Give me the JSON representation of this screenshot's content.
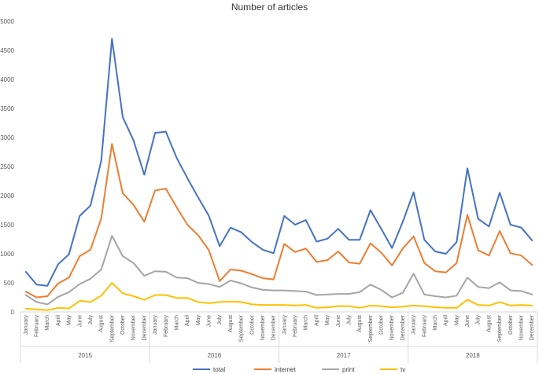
{
  "chart_data": {
    "type": "line",
    "title": "Number of articles",
    "xlabel": "",
    "ylabel": "",
    "ylim": [
      0,
      5000
    ],
    "yticks": [
      0,
      500,
      1000,
      1500,
      2000,
      2500,
      3000,
      3500,
      4000,
      4500,
      5000
    ],
    "grid": false,
    "legend_position": "bottom",
    "years": [
      {
        "label": "2015",
        "months": 12
      },
      {
        "label": "2016",
        "months": 12
      },
      {
        "label": "2017",
        "months": 12
      },
      {
        "label": "2018",
        "months": 12
      }
    ],
    "categories": [
      "January",
      "February",
      "March",
      "April",
      "May",
      "June",
      "July",
      "August",
      "September",
      "October",
      "November",
      "December",
      "January",
      "February",
      "March",
      "April",
      "May",
      "June",
      "July",
      "August",
      "September",
      "October",
      "November",
      "December",
      "January",
      "February",
      "March",
      "April",
      "May",
      "June",
      "July",
      "August",
      "September",
      "October",
      "November",
      "December",
      "January",
      "February",
      "March",
      "April",
      "May",
      "June",
      "July",
      "August",
      "September",
      "October",
      "November",
      "December"
    ],
    "series": [
      {
        "name": "total",
        "color": "#4472C4",
        "values": [
          690,
          470,
          450,
          820,
          990,
          1650,
          1830,
          2600,
          4700,
          3350,
          2950,
          2360,
          3080,
          3100,
          2650,
          2300,
          1970,
          1650,
          1130,
          1450,
          1370,
          1200,
          1070,
          1010,
          1650,
          1500,
          1580,
          1210,
          1260,
          1430,
          1240,
          1240,
          1750,
          1430,
          1100,
          1550,
          2060,
          1240,
          1040,
          1000,
          1200,
          2470,
          1600,
          1470,
          2050,
          1500,
          1450,
          1230
        ]
      },
      {
        "name": "internet",
        "color": "#ED7D31",
        "values": [
          350,
          250,
          270,
          490,
          590,
          960,
          1070,
          1610,
          2890,
          2040,
          1840,
          1550,
          2090,
          2120,
          1800,
          1500,
          1320,
          1060,
          530,
          730,
          710,
          650,
          580,
          560,
          1170,
          1030,
          1090,
          860,
          890,
          1040,
          850,
          830,
          1180,
          1020,
          800,
          1090,
          1300,
          840,
          700,
          680,
          840,
          1670,
          1060,
          970,
          1390,
          1010,
          970,
          810
        ]
      },
      {
        "name": "print",
        "color": "#A5A5A5",
        "values": [
          290,
          170,
          130,
          260,
          340,
          480,
          570,
          730,
          1310,
          960,
          840,
          620,
          700,
          690,
          590,
          580,
          500,
          480,
          430,
          540,
          490,
          420,
          380,
          370,
          370,
          360,
          350,
          290,
          300,
          310,
          310,
          340,
          470,
          380,
          250,
          330,
          660,
          300,
          270,
          250,
          280,
          590,
          430,
          410,
          510,
          370,
          360,
          300
        ]
      },
      {
        "name": "tv",
        "color": "#FFC000",
        "values": [
          55,
          45,
          30,
          70,
          60,
          190,
          170,
          280,
          500,
          320,
          270,
          210,
          290,
          290,
          240,
          240,
          170,
          150,
          170,
          180,
          170,
          130,
          120,
          120,
          120,
          110,
          120,
          70,
          80,
          100,
          100,
          70,
          110,
          100,
          80,
          90,
          110,
          100,
          80,
          70,
          70,
          210,
          120,
          110,
          170,
          110,
          120,
          110
        ]
      }
    ]
  }
}
